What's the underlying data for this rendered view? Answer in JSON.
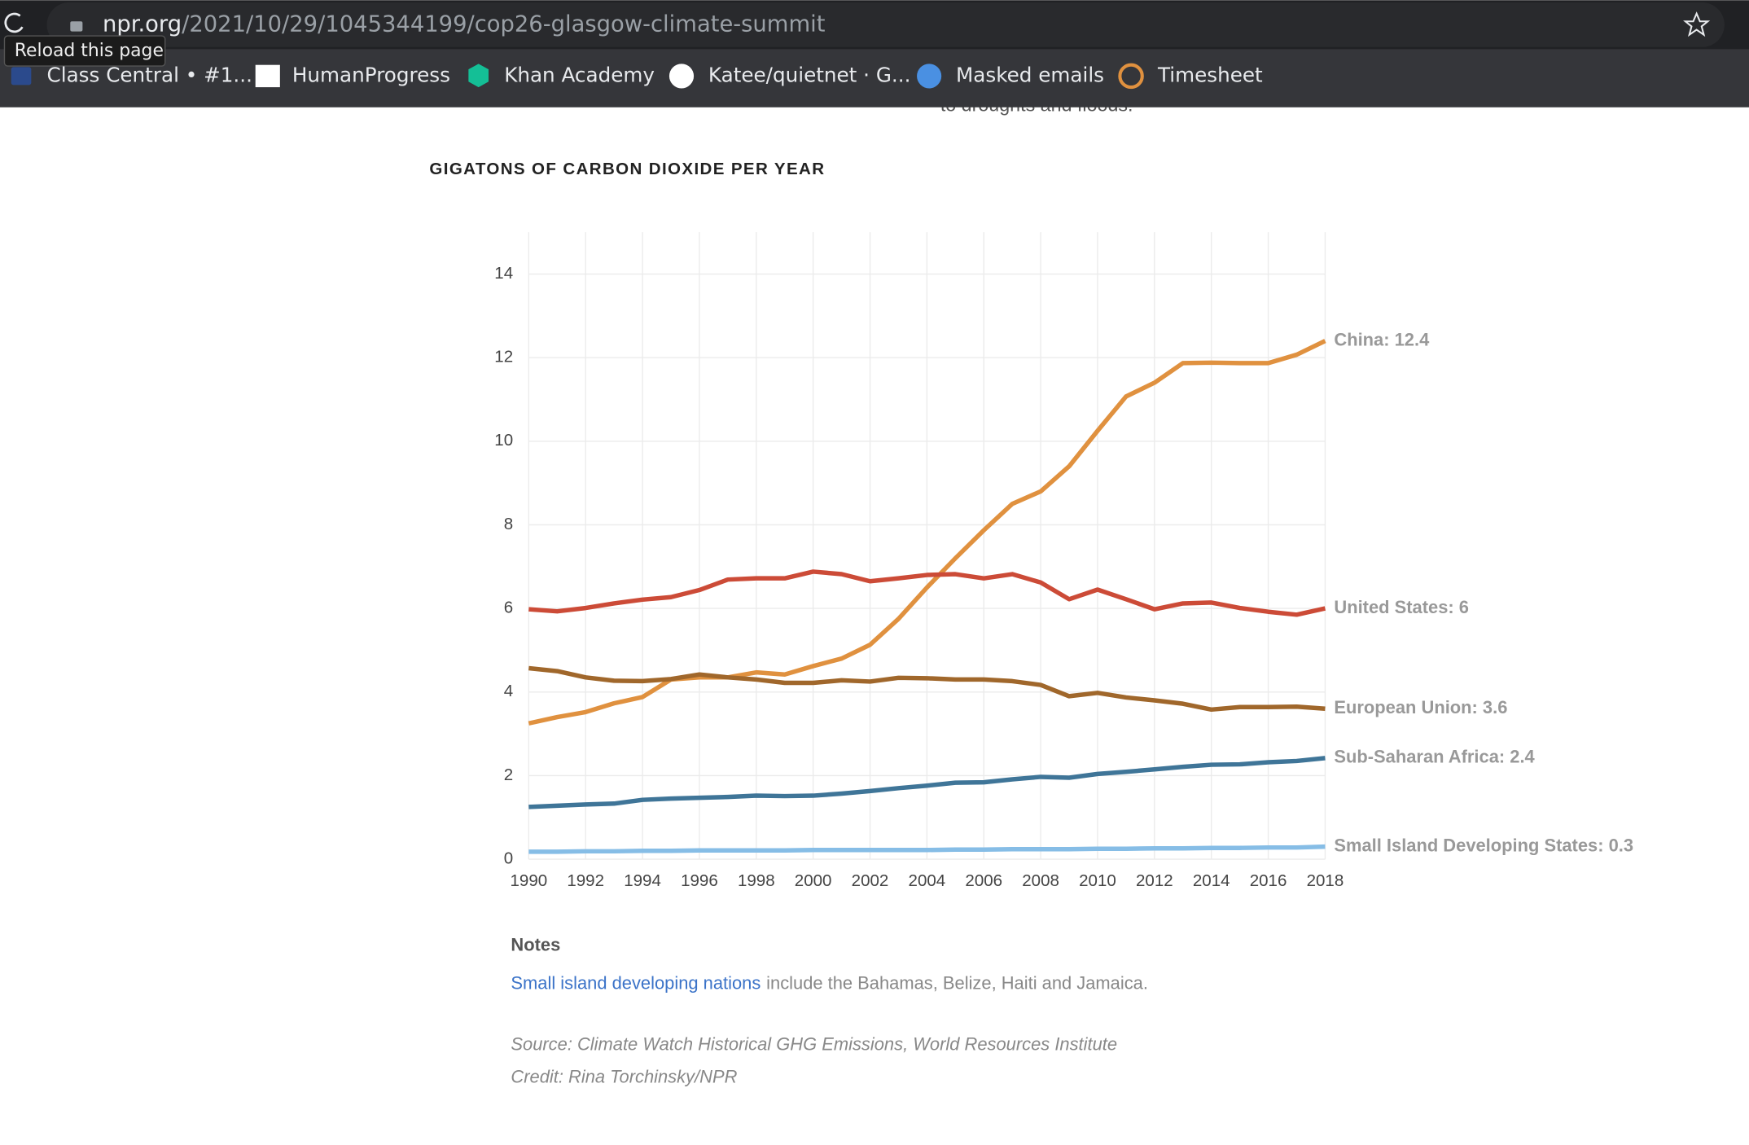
{
  "browser": {
    "url_host": "npr.org",
    "url_path": "/2021/10/29/1045344199/cop26-glasgow-climate-summit",
    "tooltip": "Reload this page",
    "bookmarks": [
      "Class Central • #1...",
      "HumanProgress",
      "Khan Academy",
      "Katee/quietnet · G...",
      "Masked emails",
      "Timesheet"
    ]
  },
  "article": {
    "cut_text": "to droughts and floods."
  },
  "chart_data": {
    "type": "line",
    "title": "GIGATONS OF CARBON DIOXIDE PER YEAR",
    "x": [
      1990,
      1991,
      1992,
      1993,
      1994,
      1995,
      1996,
      1997,
      1998,
      1999,
      2000,
      2001,
      2002,
      2003,
      2004,
      2005,
      2006,
      2007,
      2008,
      2009,
      2010,
      2011,
      2012,
      2013,
      2014,
      2015,
      2016,
      2017,
      2018
    ],
    "xlim": [
      1990,
      2018
    ],
    "xticks": [
      1990,
      1992,
      1994,
      1996,
      1998,
      2000,
      2002,
      2004,
      2006,
      2008,
      2010,
      2012,
      2014,
      2016,
      2018
    ],
    "ylim": [
      0,
      15
    ],
    "yticks": [
      0,
      2,
      4,
      6,
      8,
      10,
      12,
      14
    ],
    "grid": true,
    "series": [
      {
        "name": "China",
        "label": "China: 12.4",
        "color": "#e0913f",
        "values": [
          3.25,
          3.4,
          3.52,
          3.73,
          3.88,
          4.3,
          4.35,
          4.35,
          4.47,
          4.42,
          4.62,
          4.8,
          5.13,
          5.75,
          6.5,
          7.2,
          7.87,
          8.5,
          8.8,
          9.4,
          10.25,
          11.07,
          11.4,
          11.87,
          11.88,
          11.87,
          11.87,
          12.07,
          12.4
        ]
      },
      {
        "name": "United States",
        "label": "United States: 6",
        "color": "#cc4b37",
        "values": [
          5.98,
          5.93,
          6.01,
          6.12,
          6.21,
          6.27,
          6.44,
          6.69,
          6.72,
          6.72,
          6.88,
          6.82,
          6.65,
          6.72,
          6.8,
          6.82,
          6.72,
          6.82,
          6.62,
          6.22,
          6.45,
          6.22,
          5.98,
          6.12,
          6.14,
          6.01,
          5.92,
          5.85,
          6.0
        ]
      },
      {
        "name": "European Union",
        "label": "European Union: 3.6",
        "color": "#a0672b",
        "values": [
          4.57,
          4.5,
          4.35,
          4.27,
          4.26,
          4.31,
          4.42,
          4.35,
          4.3,
          4.22,
          4.22,
          4.28,
          4.25,
          4.34,
          4.33,
          4.3,
          4.3,
          4.26,
          4.17,
          3.9,
          3.98,
          3.87,
          3.8,
          3.72,
          3.58,
          3.64,
          3.64,
          3.65,
          3.6
        ]
      },
      {
        "name": "Sub-Saharan Africa",
        "label": "Sub-Saharan Africa: 2.4",
        "color": "#3f7598",
        "values": [
          1.25,
          1.28,
          1.31,
          1.33,
          1.42,
          1.45,
          1.47,
          1.49,
          1.52,
          1.51,
          1.52,
          1.57,
          1.63,
          1.7,
          1.76,
          1.83,
          1.84,
          1.91,
          1.97,
          1.95,
          2.04,
          2.09,
          2.15,
          2.21,
          2.26,
          2.27,
          2.32,
          2.35,
          2.42
        ]
      },
      {
        "name": "Small Island Developing States",
        "label": "Small Island Developing States: 0.3",
        "color": "#86bde6",
        "values": [
          0.18,
          0.18,
          0.19,
          0.19,
          0.2,
          0.2,
          0.21,
          0.21,
          0.21,
          0.21,
          0.22,
          0.22,
          0.22,
          0.22,
          0.22,
          0.23,
          0.23,
          0.24,
          0.24,
          0.24,
          0.25,
          0.25,
          0.26,
          0.26,
          0.27,
          0.27,
          0.28,
          0.28,
          0.3
        ]
      }
    ]
  },
  "notes": {
    "heading": "Notes",
    "link": "Small island developing nations",
    "text": "include the Bahamas, Belize, Haiti and Jamaica.",
    "source": "Source: Climate Watch Historical GHG Emissions, World Resources Institute",
    "credit": "Credit: Rina Torchinsky/NPR"
  }
}
